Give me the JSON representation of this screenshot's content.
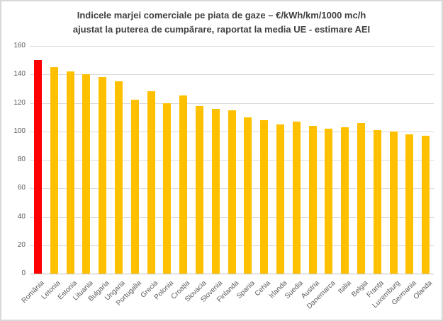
{
  "title": {
    "line1": "Indicele marjei comerciale pe piata de gaze – €/kWh/km/1000 mc/h",
    "line2": "ajustat la puterea de cumpărare, raportat la media UE - estimare AEI"
  },
  "chart_data": {
    "type": "bar",
    "title": "Indicele marjei comerciale pe piata de gaze – €/kWh/km/1000 mc/h ajustat la puterea de cumpărare, raportat la media UE - estimare AEI",
    "categories": [
      "România",
      "Letonia",
      "Estonia",
      "Lituania",
      "Bulgaria",
      "Ungaria",
      "Portugalia",
      "Grecia",
      "Polonia",
      "Croația",
      "Slovacia",
      "Slovenia",
      "Finlanda",
      "Spania",
      "Cehia",
      "Irlanda",
      "Suedia",
      "Austria",
      "Danemarca",
      "Italia",
      "Belgia",
      "Franța",
      "Luxemburg",
      "Germania",
      "Olanda"
    ],
    "values": [
      150,
      145,
      142,
      140,
      138,
      135,
      122,
      128,
      120,
      125,
      118,
      116,
      115,
      110,
      108,
      105,
      107,
      104,
      102,
      103,
      106,
      101,
      100,
      98,
      97
    ],
    "highlight_category": "România",
    "xlabel": "",
    "ylabel": "",
    "ylim": [
      0,
      160
    ],
    "yticks": [
      0,
      20,
      40,
      60,
      80,
      100,
      120,
      140,
      160
    ],
    "grid": "on",
    "legend": "none",
    "colors": {
      "bar": "#FFC000",
      "highlight_bar": "#FF0000",
      "gridline": "#D9D9D9",
      "axis_line": "#BFBFBF",
      "tick_label": "#595959",
      "title_text": "#404040",
      "background": "#FFFFFF",
      "frame_border": "#D9D9D9"
    }
  }
}
